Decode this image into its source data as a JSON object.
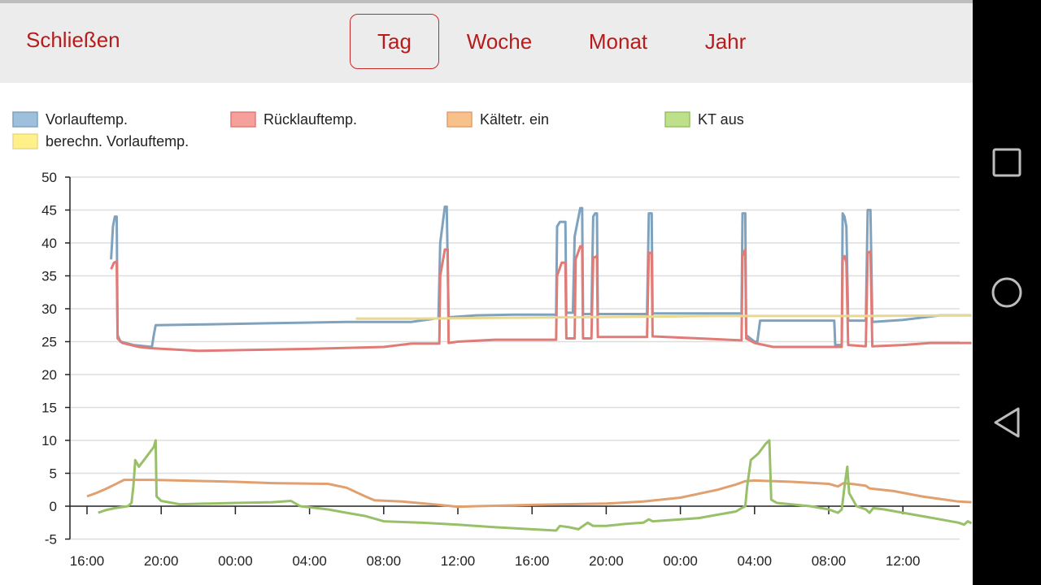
{
  "header": {
    "close_label": "Schließen",
    "tabs": [
      {
        "label": "Tag",
        "active": true
      },
      {
        "label": "Woche",
        "active": false
      },
      {
        "label": "Monat",
        "active": false
      },
      {
        "label": "Jahr",
        "active": false
      }
    ]
  },
  "colors": {
    "accent": "#b71c1c",
    "header_bg": "#ececec",
    "grid": "#dddddd"
  },
  "navigation_bar": {
    "buttons": [
      {
        "name": "recent-apps-button",
        "icon": "square-icon"
      },
      {
        "name": "home-button",
        "icon": "circle-icon"
      },
      {
        "name": "back-button",
        "icon": "triangle-back-icon"
      }
    ]
  },
  "chart_data": {
    "type": "line",
    "title": "",
    "xlabel": "",
    "ylabel": "",
    "ylim": [
      -5,
      50
    ],
    "yticks": [
      -5,
      0,
      5,
      10,
      15,
      20,
      25,
      30,
      35,
      40,
      45,
      50
    ],
    "xlim": [
      0,
      47.7
    ],
    "x_unit": "hours since 16:00",
    "xticks": [
      {
        "x": 0,
        "label": "16:00"
      },
      {
        "x": 4,
        "label": "20:00"
      },
      {
        "x": 8,
        "label": "00:00"
      },
      {
        "x": 12,
        "label": "04:00"
      },
      {
        "x": 16,
        "label": "08:00"
      },
      {
        "x": 20,
        "label": "12:00"
      },
      {
        "x": 24,
        "label": "16:00"
      },
      {
        "x": 28,
        "label": "20:00"
      },
      {
        "x": 32,
        "label": "00:00"
      },
      {
        "x": 36,
        "label": "04:00"
      },
      {
        "x": 40,
        "label": "08:00"
      },
      {
        "x": 44,
        "label": "12:00"
      }
    ],
    "grid": true,
    "legend_position": "top",
    "series": [
      {
        "name": "Vorlauftemp.",
        "color": "#7fa3bf",
        "legend_color": "#9ec0dc",
        "points": [
          [
            1.3,
            37.5
          ],
          [
            1.4,
            42.5
          ],
          [
            1.5,
            44
          ],
          [
            1.6,
            44
          ],
          [
            1.65,
            26
          ],
          [
            1.8,
            25
          ],
          [
            2.5,
            24.5
          ],
          [
            3.5,
            24.2
          ],
          [
            3.6,
            26
          ],
          [
            3.7,
            27.5
          ],
          [
            6,
            27.6
          ],
          [
            10,
            27.8
          ],
          [
            14,
            28
          ],
          [
            17.5,
            28
          ],
          [
            18.5,
            28.4
          ],
          [
            18.95,
            28.6
          ],
          [
            19.05,
            40
          ],
          [
            19.3,
            45.5
          ],
          [
            19.4,
            45.5
          ],
          [
            19.5,
            28.7
          ],
          [
            21,
            29
          ],
          [
            23,
            29.1
          ],
          [
            25.3,
            29.1
          ],
          [
            25.35,
            42.5
          ],
          [
            25.5,
            43.2
          ],
          [
            25.8,
            43.2
          ],
          [
            25.85,
            29.4
          ],
          [
            26.2,
            29.4
          ],
          [
            26.3,
            41
          ],
          [
            26.6,
            45.3
          ],
          [
            26.7,
            45.3
          ],
          [
            26.75,
            29.2
          ],
          [
            27.2,
            29.2
          ],
          [
            27.3,
            44
          ],
          [
            27.4,
            44.5
          ],
          [
            27.5,
            44.5
          ],
          [
            27.55,
            29.2
          ],
          [
            30.2,
            29.2
          ],
          [
            30.3,
            44.5
          ],
          [
            30.45,
            44.5
          ],
          [
            30.5,
            29.3
          ],
          [
            33,
            29.3
          ],
          [
            35.3,
            29.3
          ],
          [
            35.35,
            44.5
          ],
          [
            35.5,
            44.5
          ],
          [
            35.55,
            26
          ],
          [
            36,
            25
          ],
          [
            36.15,
            25
          ],
          [
            36.3,
            28.2
          ],
          [
            37,
            28.2
          ],
          [
            40.3,
            28.2
          ],
          [
            40.35,
            24.5
          ],
          [
            40.7,
            24.5
          ],
          [
            40.75,
            44.5
          ],
          [
            40.85,
            44
          ],
          [
            40.95,
            42.5
          ],
          [
            41.05,
            28.2
          ],
          [
            42,
            28.2
          ],
          [
            42.1,
            45
          ],
          [
            42.25,
            45
          ],
          [
            42.35,
            28
          ],
          [
            44,
            28.3
          ],
          [
            46,
            29
          ],
          [
            47.7,
            29
          ]
        ]
      },
      {
        "name": "Rücklauftemp.",
        "color": "#e07b76",
        "legend_color": "#f5a09a",
        "points": [
          [
            1.3,
            36
          ],
          [
            1.45,
            37
          ],
          [
            1.6,
            37.2
          ],
          [
            1.65,
            25.5
          ],
          [
            1.9,
            24.8
          ],
          [
            2.8,
            24.2
          ],
          [
            3.5,
            24
          ],
          [
            6,
            23.6
          ],
          [
            8,
            23.7
          ],
          [
            12,
            23.9
          ],
          [
            16,
            24.2
          ],
          [
            17.5,
            24.7
          ],
          [
            19,
            24.7
          ],
          [
            19.05,
            35
          ],
          [
            19.3,
            39
          ],
          [
            19.45,
            39
          ],
          [
            19.5,
            24.8
          ],
          [
            20,
            25
          ],
          [
            22,
            25.3
          ],
          [
            25.3,
            25.3
          ],
          [
            25.35,
            35
          ],
          [
            25.6,
            37
          ],
          [
            25.8,
            37
          ],
          [
            25.85,
            25.5
          ],
          [
            26.3,
            25.5
          ],
          [
            26.35,
            37.5
          ],
          [
            26.6,
            39.5
          ],
          [
            26.7,
            39.5
          ],
          [
            26.75,
            25.5
          ],
          [
            27.2,
            25.5
          ],
          [
            27.3,
            37.7
          ],
          [
            27.5,
            38
          ],
          [
            27.55,
            25.7
          ],
          [
            30.2,
            25.7
          ],
          [
            30.3,
            38.5
          ],
          [
            30.45,
            38.5
          ],
          [
            30.5,
            25.8
          ],
          [
            33,
            25.5
          ],
          [
            35.3,
            25.2
          ],
          [
            35.35,
            38
          ],
          [
            35.5,
            39
          ],
          [
            35.55,
            25.5
          ],
          [
            36,
            24.8
          ],
          [
            37,
            24.2
          ],
          [
            40.3,
            24.2
          ],
          [
            40.35,
            24.2
          ],
          [
            40.7,
            24.2
          ],
          [
            40.75,
            37.5
          ],
          [
            40.85,
            38
          ],
          [
            40.95,
            37
          ],
          [
            41.05,
            24.5
          ],
          [
            42,
            24.3
          ],
          [
            42.1,
            38.5
          ],
          [
            42.25,
            38.7
          ],
          [
            42.35,
            24.3
          ],
          [
            44,
            24.5
          ],
          [
            45.5,
            24.8
          ],
          [
            47.7,
            24.8
          ]
        ]
      },
      {
        "name": "Kältetr. ein",
        "color": "#e0a070",
        "legend_color": "#f8c08a",
        "points": [
          [
            0,
            1.5
          ],
          [
            0.5,
            2
          ],
          [
            1,
            2.6
          ],
          [
            1.5,
            3.3
          ],
          [
            2,
            4
          ],
          [
            3.5,
            4
          ],
          [
            5,
            3.9
          ],
          [
            8,
            3.7
          ],
          [
            10,
            3.5
          ],
          [
            13,
            3.4
          ],
          [
            14,
            2.8
          ],
          [
            15,
            1.5
          ],
          [
            15.5,
            0.9
          ],
          [
            17,
            0.7
          ],
          [
            19,
            0.2
          ],
          [
            20,
            -0.1
          ],
          [
            21,
            0
          ],
          [
            24,
            0.2
          ],
          [
            28,
            0.4
          ],
          [
            30,
            0.7
          ],
          [
            32,
            1.3
          ],
          [
            34,
            2.5
          ],
          [
            35,
            3.3
          ],
          [
            35.5,
            3.8
          ],
          [
            36,
            3.9
          ],
          [
            38,
            3.7
          ],
          [
            40,
            3.4
          ],
          [
            40.5,
            3
          ],
          [
            40.8,
            3.5
          ],
          [
            41.5,
            3.3
          ],
          [
            42,
            3.1
          ],
          [
            42.2,
            2.7
          ],
          [
            43.5,
            2.3
          ],
          [
            45,
            1.5
          ],
          [
            47,
            0.7
          ],
          [
            47.7,
            0.6
          ]
        ]
      },
      {
        "name": "KT aus",
        "color": "#98c068",
        "legend_color": "#bfe08a",
        "points": [
          [
            0.6,
            -1
          ],
          [
            1,
            -0.6
          ],
          [
            1.5,
            -0.3
          ],
          [
            2.2,
            0
          ],
          [
            2.4,
            0.5
          ],
          [
            2.5,
            3
          ],
          [
            2.6,
            7
          ],
          [
            2.8,
            6
          ],
          [
            3.2,
            7.5
          ],
          [
            3.6,
            9
          ],
          [
            3.7,
            10
          ],
          [
            3.75,
            1.5
          ],
          [
            4,
            0.8
          ],
          [
            5,
            0.3
          ],
          [
            8,
            0.5
          ],
          [
            10,
            0.6
          ],
          [
            11,
            0.8
          ],
          [
            11.5,
            0
          ],
          [
            13,
            -0.5
          ],
          [
            14,
            -1
          ],
          [
            15,
            -1.5
          ],
          [
            16,
            -2.3
          ],
          [
            18,
            -2.5
          ],
          [
            20,
            -2.8
          ],
          [
            22,
            -3.2
          ],
          [
            24,
            -3.5
          ],
          [
            25.3,
            -3.7
          ],
          [
            25.5,
            -3
          ],
          [
            26,
            -3.2
          ],
          [
            26.5,
            -3.5
          ],
          [
            27,
            -2.5
          ],
          [
            27.3,
            -3
          ],
          [
            28,
            -3
          ],
          [
            29,
            -2.7
          ],
          [
            30,
            -2.5
          ],
          [
            30.3,
            -2
          ],
          [
            30.5,
            -2.3
          ],
          [
            32,
            -2
          ],
          [
            33,
            -1.8
          ],
          [
            34,
            -1.3
          ],
          [
            35,
            -0.8
          ],
          [
            35.3,
            -0.3
          ],
          [
            35.5,
            0
          ],
          [
            35.6,
            3
          ],
          [
            35.8,
            7
          ],
          [
            36.2,
            8
          ],
          [
            36.6,
            9.5
          ],
          [
            36.8,
            10
          ],
          [
            36.9,
            1
          ],
          [
            37.2,
            0.5
          ],
          [
            39,
            0
          ],
          [
            40,
            -0.5
          ],
          [
            40.3,
            -0.8
          ],
          [
            40.5,
            -1
          ],
          [
            40.7,
            -0.5
          ],
          [
            40.85,
            3
          ],
          [
            41,
            6
          ],
          [
            41.1,
            2
          ],
          [
            41.5,
            0
          ],
          [
            42,
            -0.5
          ],
          [
            42.2,
            -1
          ],
          [
            42.4,
            -0.3
          ],
          [
            43,
            -0.5
          ],
          [
            44,
            -1
          ],
          [
            45,
            -1.5
          ],
          [
            46,
            -2
          ],
          [
            47,
            -2.5
          ],
          [
            47.3,
            -2.8
          ],
          [
            47.5,
            -2.3
          ],
          [
            47.7,
            -2.6
          ]
        ]
      },
      {
        "name": "berechn. Vorlauftemp.",
        "color": "#e8d890",
        "legend_color": "#fff08a",
        "points": [
          [
            14.5,
            28.5
          ],
          [
            18,
            28.5
          ],
          [
            22,
            28.6
          ],
          [
            26,
            28.7
          ],
          [
            30,
            28.8
          ],
          [
            34,
            28.9
          ],
          [
            38,
            28.9
          ],
          [
            42,
            28.9
          ],
          [
            47.7,
            29
          ]
        ]
      }
    ]
  }
}
